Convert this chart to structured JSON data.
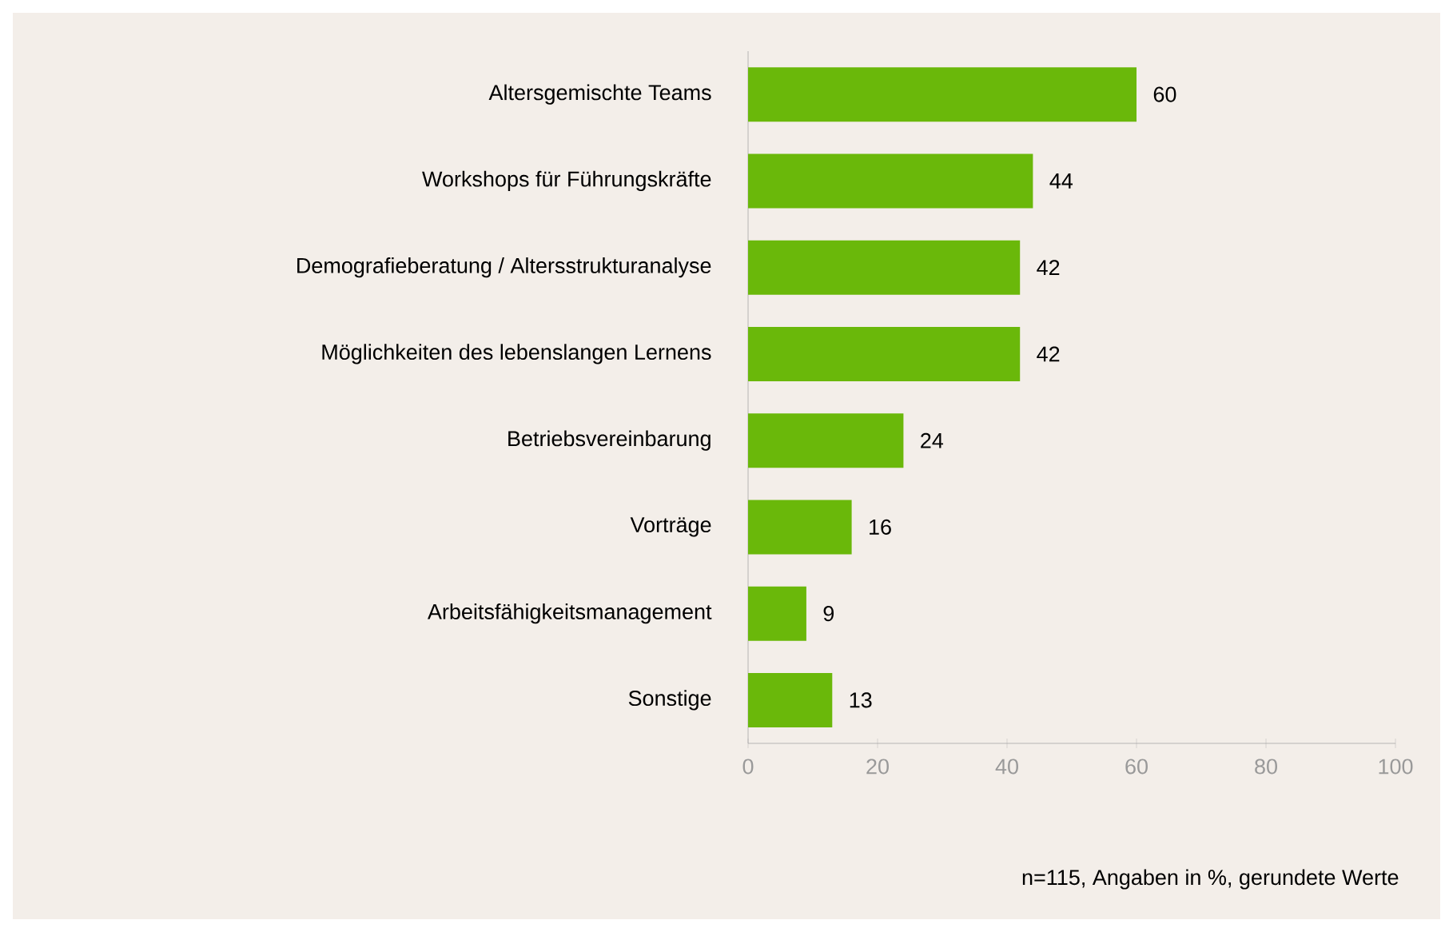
{
  "chart_data": {
    "type": "bar",
    "orientation": "horizontal",
    "categories": [
      "Altersgemischte Teams",
      "Workshops für Führungskräfte",
      "Demografieberatung / Altersstrukturanalyse",
      "Möglichkeiten des lebenslangen Lernens",
      "Betriebsvereinbarung",
      "Vorträge",
      "Arbeitsfähigkeitsmanagement",
      "Sonstige"
    ],
    "values": [
      60,
      44,
      42,
      42,
      24,
      16,
      9,
      13
    ],
    "color": "#6ab80a",
    "xlim": [
      0,
      100
    ],
    "xticks": [
      0,
      20,
      40,
      60,
      80,
      100
    ],
    "data_labels": true,
    "annotations": [
      "n=115, Angaben in %, gerundete Werte"
    ]
  }
}
